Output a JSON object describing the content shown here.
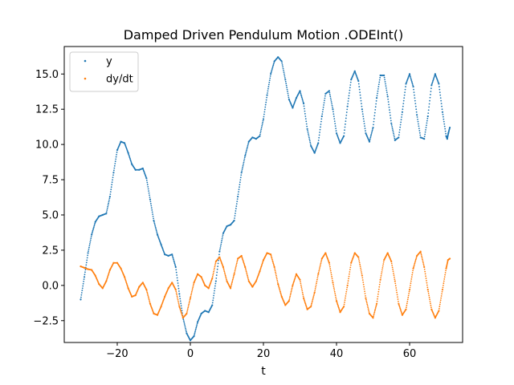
{
  "chart_data": {
    "type": "scatter",
    "title": "Damped Driven Pendulum Motion .ODEInt()",
    "xlabel": "t",
    "ylabel": "",
    "xlim": [
      -34.5,
      74.5
    ],
    "ylim": [
      -4.05,
      16.95
    ],
    "xticks": [
      -20,
      0,
      20,
      40,
      60
    ],
    "xtick_labels": [
      "−20",
      "0",
      "20",
      "40",
      "60"
    ],
    "yticks": [
      -2.5,
      0.0,
      2.5,
      5.0,
      7.5,
      10.0,
      12.5,
      15.0
    ],
    "ytick_labels": [
      "−2.5",
      "0.0",
      "2.5",
      "5.0",
      "7.5",
      "10.0",
      "12.5",
      "15.0"
    ],
    "grid": false,
    "legend_position": "upper-left",
    "series": [
      {
        "name": "y",
        "color": "#1f77b4",
        "points": [
          [
            -30,
            -1.0
          ],
          [
            -29,
            0.6
          ],
          [
            -28,
            2.3
          ],
          [
            -27,
            3.6
          ],
          [
            -26,
            4.5
          ],
          [
            -25,
            4.9
          ],
          [
            -24,
            5.0
          ],
          [
            -23,
            5.1
          ],
          [
            -22,
            6.3
          ],
          [
            -21,
            8.0
          ],
          [
            -20,
            9.6
          ],
          [
            -19,
            10.2
          ],
          [
            -18,
            10.1
          ],
          [
            -17,
            9.4
          ],
          [
            -16,
            8.6
          ],
          [
            -15,
            8.2
          ],
          [
            -14,
            8.2
          ],
          [
            -13,
            8.3
          ],
          [
            -12,
            7.6
          ],
          [
            -11,
            6.1
          ],
          [
            -10,
            4.6
          ],
          [
            -9,
            3.6
          ],
          [
            -8,
            2.9
          ],
          [
            -7,
            2.2
          ],
          [
            -6,
            2.1
          ],
          [
            -5,
            2.2
          ],
          [
            -4,
            1.3
          ],
          [
            -3,
            -0.6
          ],
          [
            -2,
            -2.3
          ],
          [
            -1,
            -3.4
          ],
          [
            0,
            -3.9
          ],
          [
            1,
            -3.6
          ],
          [
            2,
            -2.6
          ],
          [
            3,
            -2.0
          ],
          [
            4,
            -1.8
          ],
          [
            5,
            -1.9
          ],
          [
            6,
            -1.4
          ],
          [
            7,
            0.3
          ],
          [
            8,
            2.4
          ],
          [
            9,
            3.7
          ],
          [
            10,
            4.2
          ],
          [
            11,
            4.3
          ],
          [
            12,
            4.6
          ],
          [
            13,
            6.3
          ],
          [
            14,
            8.0
          ],
          [
            15,
            9.2
          ],
          [
            16,
            10.2
          ],
          [
            17,
            10.5
          ],
          [
            18,
            10.4
          ],
          [
            19,
            10.6
          ],
          [
            20,
            11.8
          ],
          [
            21,
            13.5
          ],
          [
            22,
            15.0
          ],
          [
            23,
            15.9
          ],
          [
            24,
            16.2
          ],
          [
            25,
            15.9
          ],
          [
            26,
            14.6
          ],
          [
            27,
            13.2
          ],
          [
            28,
            12.6
          ],
          [
            29,
            13.3
          ],
          [
            30,
            13.8
          ],
          [
            31,
            12.9
          ],
          [
            32,
            11.1
          ],
          [
            33,
            9.9
          ],
          [
            34,
            9.4
          ],
          [
            35,
            10.1
          ],
          [
            36,
            12.0
          ],
          [
            37,
            13.6
          ],
          [
            38,
            13.8
          ],
          [
            39,
            12.5
          ],
          [
            40,
            10.8
          ],
          [
            41,
            10.1
          ],
          [
            42,
            10.6
          ],
          [
            43,
            12.7
          ],
          [
            44,
            14.6
          ],
          [
            45,
            15.2
          ],
          [
            46,
            14.5
          ],
          [
            47,
            12.5
          ],
          [
            48,
            10.8
          ],
          [
            49,
            10.2
          ],
          [
            50,
            11.2
          ],
          [
            51,
            13.3
          ],
          [
            52,
            14.9
          ],
          [
            53,
            14.9
          ],
          [
            54,
            13.4
          ],
          [
            55,
            11.5
          ],
          [
            56,
            10.3
          ],
          [
            57,
            10.5
          ],
          [
            58,
            12.3
          ],
          [
            59,
            14.3
          ],
          [
            60,
            15.0
          ],
          [
            61,
            14.1
          ],
          [
            62,
            12.1
          ],
          [
            63,
            10.5
          ],
          [
            64,
            10.4
          ],
          [
            65,
            12.0
          ],
          [
            66,
            14.2
          ],
          [
            67,
            15.0
          ],
          [
            68,
            14.3
          ],
          [
            69,
            12.3
          ],
          [
            70,
            10.6
          ],
          [
            70.3,
            10.4
          ],
          [
            70.6,
            10.8
          ],
          [
            71,
            11.2
          ]
        ]
      },
      {
        "name": "dy/dt",
        "color": "#ff7f0e",
        "points": [
          [
            -30,
            1.35
          ],
          [
            -29,
            1.25
          ],
          [
            -28,
            1.15
          ],
          [
            -27,
            1.1
          ],
          [
            -26,
            0.7
          ],
          [
            -25,
            0.1
          ],
          [
            -24,
            -0.2
          ],
          [
            -23,
            0.3
          ],
          [
            -22,
            1.1
          ],
          [
            -21,
            1.6
          ],
          [
            -20,
            1.6
          ],
          [
            -19,
            1.2
          ],
          [
            -18,
            0.6
          ],
          [
            -17,
            -0.2
          ],
          [
            -16,
            -0.8
          ],
          [
            -15,
            -0.7
          ],
          [
            -14,
            -0.1
          ],
          [
            -13,
            0.2
          ],
          [
            -12,
            -0.3
          ],
          [
            -11,
            -1.3
          ],
          [
            -10,
            -2.0
          ],
          [
            -9,
            -2.1
          ],
          [
            -8,
            -1.5
          ],
          [
            -7,
            -0.8
          ],
          [
            -6,
            -0.2
          ],
          [
            -5,
            0.2
          ],
          [
            -4,
            -0.3
          ],
          [
            -3,
            -1.5
          ],
          [
            -2,
            -2.3
          ],
          [
            -1,
            -2.0
          ],
          [
            0,
            -0.9
          ],
          [
            1,
            0.2
          ],
          [
            2,
            0.8
          ],
          [
            3,
            0.6
          ],
          [
            4,
            0.0
          ],
          [
            5,
            -0.2
          ],
          [
            6,
            0.5
          ],
          [
            7,
            1.7
          ],
          [
            8,
            2.0
          ],
          [
            9,
            1.3
          ],
          [
            10,
            0.3
          ],
          [
            11,
            -0.2
          ],
          [
            12,
            0.8
          ],
          [
            13,
            1.9
          ],
          [
            14,
            2.1
          ],
          [
            15,
            1.3
          ],
          [
            16,
            0.3
          ],
          [
            17,
            -0.1
          ],
          [
            18,
            0.3
          ],
          [
            19,
            1.0
          ],
          [
            20,
            1.8
          ],
          [
            21,
            2.3
          ],
          [
            22,
            2.2
          ],
          [
            23,
            1.3
          ],
          [
            24,
            0.1
          ],
          [
            25,
            -0.8
          ],
          [
            26,
            -1.4
          ],
          [
            27,
            -1.1
          ],
          [
            28,
            0.0
          ],
          [
            29,
            0.8
          ],
          [
            30,
            0.4
          ],
          [
            31,
            -0.9
          ],
          [
            32,
            -1.7
          ],
          [
            33,
            -1.5
          ],
          [
            34,
            -0.5
          ],
          [
            35,
            0.8
          ],
          [
            36,
            1.9
          ],
          [
            37,
            2.3
          ],
          [
            38,
            1.6
          ],
          [
            39,
            0.2
          ],
          [
            40,
            -1.1
          ],
          [
            41,
            -1.9
          ],
          [
            42,
            -1.5
          ],
          [
            43,
            0.0
          ],
          [
            44,
            1.6
          ],
          [
            45,
            2.3
          ],
          [
            46,
            2.0
          ],
          [
            47,
            0.7
          ],
          [
            48,
            -0.9
          ],
          [
            49,
            -2.0
          ],
          [
            50,
            -2.3
          ],
          [
            51,
            -1.3
          ],
          [
            52,
            0.4
          ],
          [
            53,
            1.8
          ],
          [
            54,
            2.3
          ],
          [
            55,
            1.7
          ],
          [
            56,
            0.3
          ],
          [
            57,
            -1.3
          ],
          [
            58,
            -2.1
          ],
          [
            59,
            -1.7
          ],
          [
            60,
            -0.3
          ],
          [
            61,
            1.2
          ],
          [
            62,
            2.1
          ],
          [
            63,
            2.4
          ],
          [
            64,
            1.3
          ],
          [
            65,
            -0.3
          ],
          [
            66,
            -1.7
          ],
          [
            67,
            -2.3
          ],
          [
            68,
            -1.8
          ],
          [
            69,
            -0.3
          ],
          [
            70,
            1.2
          ],
          [
            70.5,
            1.8
          ],
          [
            71,
            1.9
          ]
        ]
      }
    ]
  }
}
